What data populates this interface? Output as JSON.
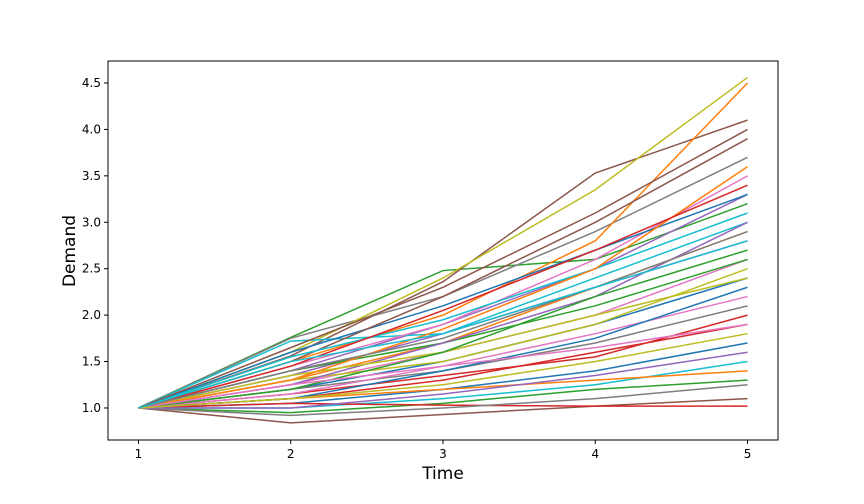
{
  "chart_data": {
    "type": "line",
    "xlabel": "Time",
    "ylabel": "Demand",
    "x": [
      1,
      2,
      3,
      4,
      5
    ],
    "xlim": [
      0.8,
      5.2
    ],
    "ylim": [
      0.655,
      4.737
    ],
    "xticks": [
      1,
      2,
      3,
      4,
      5
    ],
    "yticks": [
      {
        "value": 1,
        "label": "1.0"
      },
      1.5,
      {
        "value": 2,
        "label": "2.0"
      },
      2.5,
      {
        "value": 3,
        "label": "3.0"
      },
      3.5,
      {
        "value": 4,
        "label": "4.0"
      },
      4.5
    ],
    "grid": false,
    "series": [
      {
        "color": "#1f77b4",
        "values": [
          1,
          1.2,
          1.5,
          1.9,
          2.4
        ]
      },
      {
        "color": "#ff7f0e",
        "values": [
          1,
          1.3,
          1.7,
          2.3,
          2.9
        ]
      },
      {
        "color": "#2ca02c",
        "values": [
          1,
          1.76,
          2.48,
          2.6,
          3.2
        ]
      },
      {
        "color": "#d62728",
        "values": [
          1,
          1.1,
          1.3,
          1.6,
          1.9
        ]
      },
      {
        "color": "#9467bd",
        "values": [
          1,
          1.4,
          1.9,
          2.5,
          3.3
        ]
      },
      {
        "color": "#8c564b",
        "values": [
          1,
          1.56,
          2.36,
          3.53,
          4.1
        ]
      },
      {
        "color": "#e377c2",
        "values": [
          1,
          1.25,
          1.6,
          2.0,
          2.6
        ]
      },
      {
        "color": "#7f7f7f",
        "values": [
          1,
          1.75,
          2.2,
          2.9,
          3.7
        ]
      },
      {
        "color": "#bcbd22",
        "values": [
          1,
          1.6,
          2.4,
          3.35,
          4.56
        ]
      },
      {
        "color": "#17becf",
        "values": [
          1,
          1.72,
          1.8,
          2.4,
          3.0
        ]
      },
      {
        "color": "#1f77b4",
        "values": [
          1,
          1.05,
          1.2,
          1.4,
          1.7
        ]
      },
      {
        "color": "#ff7f0e",
        "values": [
          1,
          1.5,
          2.0,
          2.8,
          4.5
        ]
      },
      {
        "color": "#2ca02c",
        "values": [
          1,
          0.95,
          1.05,
          1.2,
          1.3
        ]
      },
      {
        "color": "#d62728",
        "values": [
          1,
          1.15,
          1.35,
          1.55,
          2.0
        ]
      },
      {
        "color": "#9467bd",
        "values": [
          1,
          1.35,
          1.8,
          2.3,
          2.8
        ]
      },
      {
        "color": "#8c564b",
        "values": [
          1,
          0.84,
          0.93,
          1.02,
          1.1
        ]
      },
      {
        "color": "#e377c2",
        "values": [
          1,
          1.45,
          1.9,
          2.6,
          3.5
        ]
      },
      {
        "color": "#7f7f7f",
        "values": [
          1,
          1.2,
          1.4,
          1.7,
          2.1
        ]
      },
      {
        "color": "#bcbd22",
        "values": [
          1,
          1.3,
          1.5,
          1.9,
          2.5
        ]
      },
      {
        "color": "#17becf",
        "values": [
          1,
          1.0,
          1.1,
          1.25,
          1.5
        ]
      },
      {
        "color": "#1f77b4",
        "values": [
          1,
          1.6,
          2.1,
          2.7,
          3.3
        ]
      },
      {
        "color": "#ff7f0e",
        "values": [
          1,
          1.1,
          1.2,
          1.3,
          1.4
        ]
      },
      {
        "color": "#2ca02c",
        "values": [
          1,
          1.4,
          1.7,
          2.1,
          2.6
        ]
      },
      {
        "color": "#d62728",
        "values": [
          1,
          1.05,
          1.03,
          1.02,
          1.02
        ]
      },
      {
        "color": "#9467bd",
        "values": [
          1,
          1.25,
          1.7,
          2.2,
          3.0
        ]
      },
      {
        "color": "#8c564b",
        "values": [
          1,
          1.5,
          2.2,
          3.0,
          3.9
        ]
      },
      {
        "color": "#e377c2",
        "values": [
          1,
          1.15,
          1.45,
          1.8,
          2.2
        ]
      },
      {
        "color": "#7f7f7f",
        "values": [
          1,
          0.92,
          1.0,
          1.1,
          1.25
        ]
      },
      {
        "color": "#bcbd22",
        "values": [
          1,
          1.35,
          1.6,
          2.0,
          2.4
        ]
      },
      {
        "color": "#17becf",
        "values": [
          1,
          1.55,
          1.95,
          2.5,
          3.1
        ]
      },
      {
        "color": "#1f77b4",
        "values": [
          1,
          1.1,
          1.4,
          1.75,
          2.3
        ]
      },
      {
        "color": "#ff7f0e",
        "values": [
          1,
          1.3,
          1.85,
          2.5,
          3.6
        ]
      },
      {
        "color": "#2ca02c",
        "values": [
          1,
          1.2,
          1.6,
          2.2,
          2.7
        ]
      },
      {
        "color": "#d62728",
        "values": [
          1,
          1.45,
          2.05,
          2.7,
          3.4
        ]
      },
      {
        "color": "#9467bd",
        "values": [
          1,
          1.0,
          1.15,
          1.35,
          1.6
        ]
      },
      {
        "color": "#8c564b",
        "values": [
          1,
          1.65,
          2.3,
          3.1,
          4.0
        ]
      },
      {
        "color": "#e377c2",
        "values": [
          1,
          1.25,
          1.45,
          1.65,
          1.9
        ]
      },
      {
        "color": "#7f7f7f",
        "values": [
          1,
          1.4,
          1.75,
          2.3,
          2.9
        ]
      },
      {
        "color": "#bcbd22",
        "values": [
          1,
          1.1,
          1.25,
          1.5,
          1.8
        ]
      },
      {
        "color": "#17becf",
        "values": [
          1,
          1.5,
          1.8,
          2.3,
          2.8
        ]
      }
    ]
  }
}
